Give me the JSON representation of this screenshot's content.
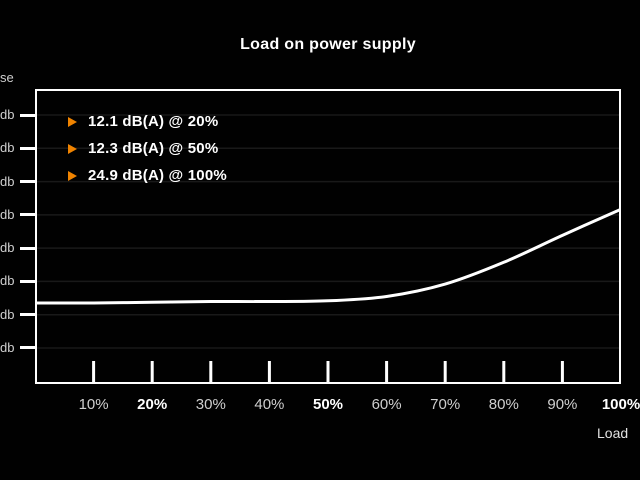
{
  "title": "Load on power supply",
  "y_axis": {
    "title_fragment": "se",
    "tick_label": "db",
    "tick_count": 8
  },
  "x_axis": {
    "title": "Load",
    "ticks": [
      {
        "label": "10%",
        "bold": false
      },
      {
        "label": "20%",
        "bold": true
      },
      {
        "label": "30%",
        "bold": false
      },
      {
        "label": "40%",
        "bold": false
      },
      {
        "label": "50%",
        "bold": true
      },
      {
        "label": "60%",
        "bold": false
      },
      {
        "label": "70%",
        "bold": false
      },
      {
        "label": "80%",
        "bold": false
      },
      {
        "label": "90%",
        "bold": false
      },
      {
        "label": "100%",
        "bold": true
      }
    ]
  },
  "annotations": [
    {
      "text": "12.1 dB(A) @ 20%"
    },
    {
      "text": "12.3 dB(A) @ 50%"
    },
    {
      "text": "24.9 dB(A) @ 100%"
    }
  ],
  "colors": {
    "background": "#010101",
    "curve": "#ffffff",
    "axis": "#ffffff",
    "gridline": "#191919",
    "accent_orange": "#ef8300",
    "label_gray": "#cfcfcf",
    "label_white": "#ffffff"
  },
  "chart_data": {
    "type": "line",
    "title": "Load on power supply",
    "xlabel": "Load",
    "x_unit": "%",
    "y_unit": "dB(A)",
    "x": [
      0,
      10,
      20,
      30,
      40,
      50,
      60,
      70,
      80,
      90,
      100
    ],
    "series": [
      {
        "name": "Noise",
        "values": [
          12.0,
          12.0,
          12.1,
          12.2,
          12.2,
          12.3,
          12.9,
          14.6,
          17.6,
          21.3,
          24.9
        ]
      }
    ],
    "data_labels": [
      "12.1 dB(A) @ 20%",
      "12.3 dB(A) @ 50%",
      "24.9 dB(A) @ 100%"
    ],
    "grid": "horizontal-only",
    "legend_position": "inside-top-left",
    "notes": "y tick labels show only 'db' fragments; axis title shows only 'se' fragment (cut at image edge)"
  }
}
